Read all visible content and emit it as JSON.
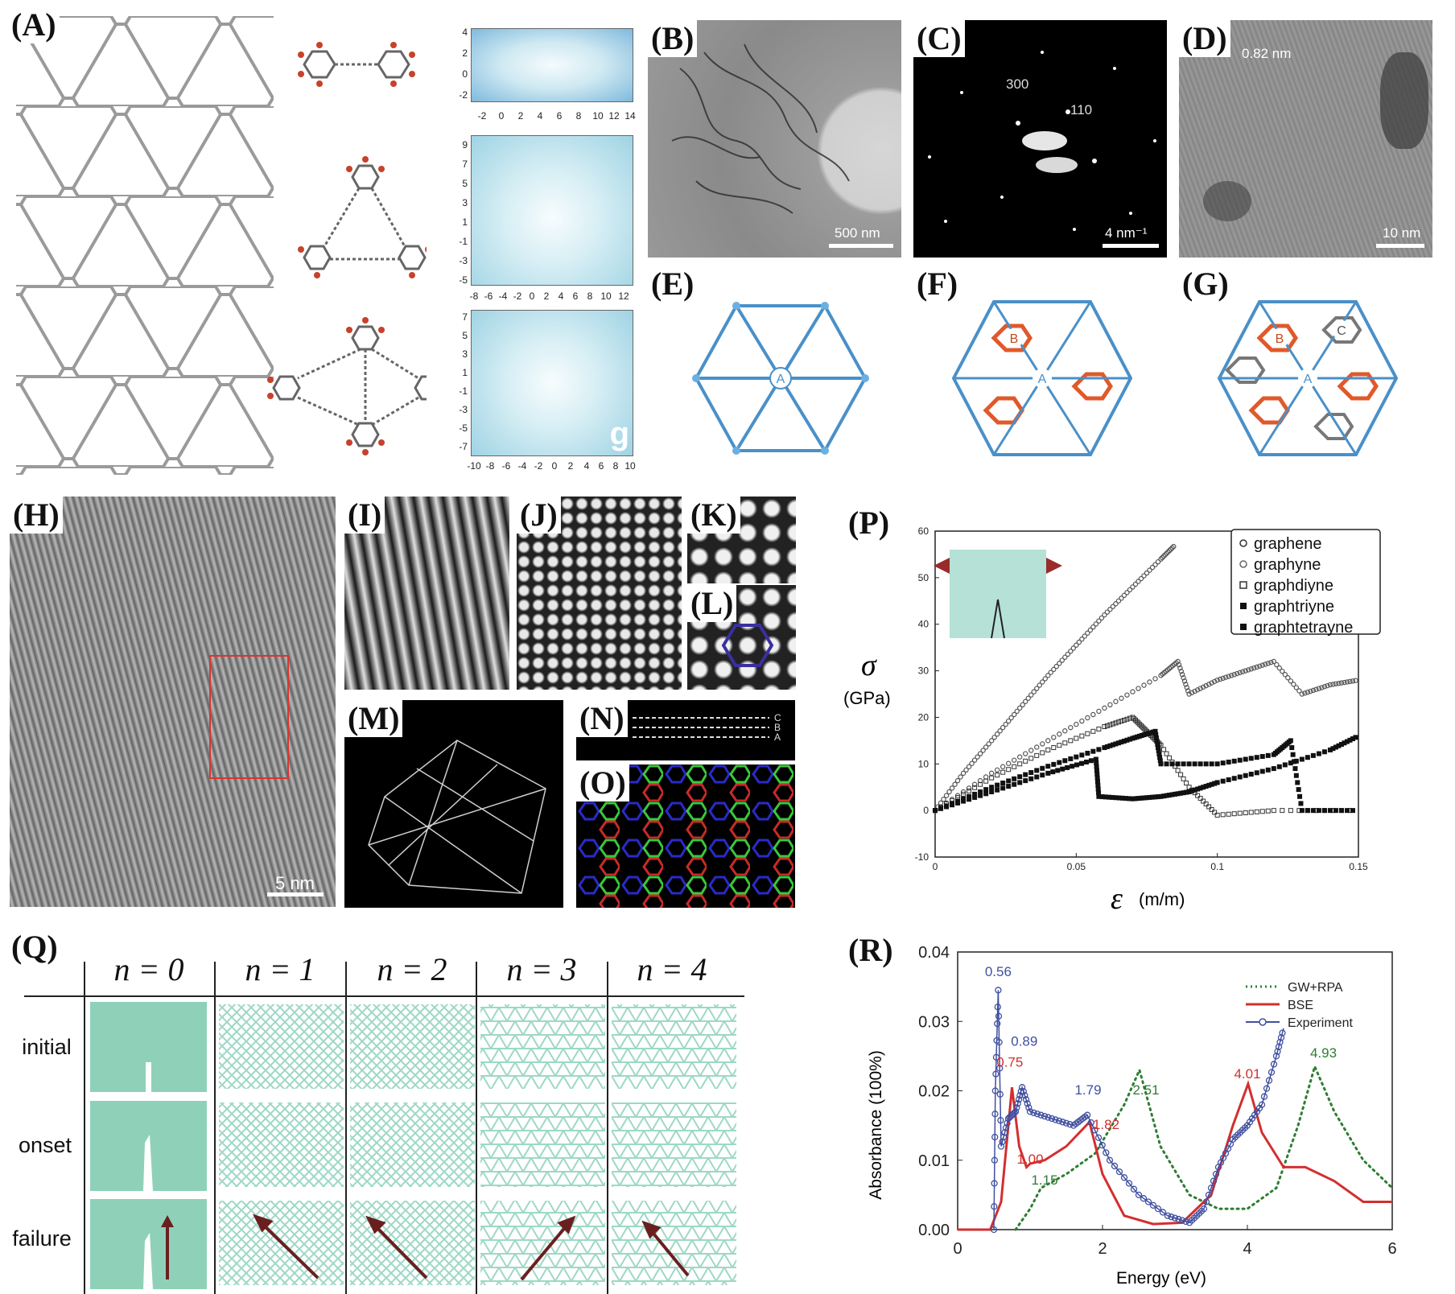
{
  "labels": {
    "A": "(A)",
    "B": "(B)",
    "C": "(C)",
    "D": "(D)",
    "E": "(E)",
    "F": "(F)",
    "G": "(G)",
    "H": "(H)",
    "I": "(I)",
    "J": "(J)",
    "K": "(K)",
    "L": "(L)",
    "M": "(M)",
    "N": "(N)",
    "O": "(O)",
    "P": "(P)",
    "Q": "(Q)",
    "R": "(R)"
  },
  "panel_a": {
    "map1_xticks": [
      "-2",
      "0",
      "2",
      "4",
      "6",
      "8",
      "10",
      "12",
      "14"
    ],
    "map1_yticks": [
      "4",
      "2",
      "0",
      "-2"
    ],
    "map2_xticks": [
      "-8",
      "-6",
      "-4",
      "-2",
      "0",
      "2",
      "4",
      "6",
      "8",
      "10",
      "12"
    ],
    "map2_yticks": [
      "9",
      "7",
      "5",
      "3",
      "1",
      "-1",
      "-3",
      "-5"
    ],
    "map3_xticks": [
      "-10",
      "-8",
      "-6",
      "-4",
      "-2",
      "0",
      "2",
      "4",
      "6",
      "8",
      "10"
    ],
    "map3_yticks": [
      "7",
      "5",
      "3",
      "1",
      "-1",
      "-3",
      "-5",
      "-7"
    ],
    "corner_letter": "g"
  },
  "panel_b": {
    "scale": "500 nm"
  },
  "panel_c": {
    "spot1": "300",
    "spot2": "110",
    "scale": "4 nm⁻¹"
  },
  "panel_d": {
    "spacing": "0.82 nm",
    "scale": "10 nm"
  },
  "panel_e": {
    "site": "A"
  },
  "panel_f": {
    "site_a": "A",
    "site_b": "B"
  },
  "panel_g": {
    "site_a": "A",
    "site_b": "B",
    "site_c": "C"
  },
  "panel_h": {
    "scale": "5 nm"
  },
  "panel_n": {
    "layers": [
      "C",
      "B",
      "A"
    ]
  },
  "panel_p": {
    "ylabel_symbol": "σ",
    "ylabel_unit": "(GPa)",
    "xlabel_symbol": "ε",
    "xlabel_unit": "(m/m)",
    "legend": [
      "graphene",
      "graphyne",
      "graphdiyne",
      "graphtriyne",
      "graphtetrayne"
    ]
  },
  "panel_q": {
    "headers": [
      "n = 0",
      "n = 1",
      "n = 2",
      "n = 3",
      "n = 4"
    ],
    "rows": [
      "initial",
      "onset",
      "failure"
    ]
  },
  "chart_data": [
    {
      "panel": "P",
      "type": "scatter",
      "title": "",
      "xlabel": "ε (m/m)",
      "ylabel": "σ (GPa)",
      "xlim": [
        0,
        0.15
      ],
      "ylim": [
        -10,
        60
      ],
      "xticks": [
        "0",
        "0.05",
        "0.1",
        "0.15"
      ],
      "yticks": [
        "60",
        "50",
        "40",
        "30",
        "20",
        "10",
        "0",
        "-10"
      ],
      "legend_position": "top-right",
      "series": [
        {
          "name": "graphene",
          "marker": "open-circle",
          "x": [
            0,
            0.01,
            0.02,
            0.03,
            0.04,
            0.05,
            0.06,
            0.07,
            0.08,
            0.085
          ],
          "y": [
            0,
            8,
            15,
            22,
            29,
            35.5,
            42,
            48,
            54,
            57
          ]
        },
        {
          "name": "graphyne",
          "marker": "open-circle",
          "x": [
            0,
            0.02,
            0.04,
            0.06,
            0.08,
            0.086,
            0.09,
            0.1,
            0.11,
            0.12,
            0.13,
            0.14,
            0.15
          ],
          "y": [
            0,
            8,
            15,
            22,
            29,
            32,
            25,
            28,
            30,
            32,
            25,
            27,
            28
          ]
        },
        {
          "name": "graphdiyne",
          "marker": "open-square",
          "x": [
            0,
            0.02,
            0.04,
            0.06,
            0.07,
            0.075,
            0.08,
            0.09,
            0.1,
            0.12,
            0.15
          ],
          "y": [
            0,
            7,
            13,
            18,
            20,
            17,
            14,
            5,
            -1,
            0,
            0
          ]
        },
        {
          "name": "graphtriyne",
          "marker": "filled-square",
          "x": [
            0,
            0.02,
            0.04,
            0.06,
            0.07,
            0.078,
            0.08,
            0.1,
            0.12,
            0.126,
            0.13,
            0.15
          ],
          "y": [
            0,
            5,
            9.5,
            13.5,
            15.5,
            17,
            10,
            10,
            12,
            15,
            0,
            0
          ]
        },
        {
          "name": "graphtetrayne",
          "marker": "filled-square",
          "x": [
            0,
            0.02,
            0.04,
            0.057,
            0.058,
            0.07,
            0.08,
            0.09,
            0.1,
            0.12,
            0.14,
            0.15
          ],
          "y": [
            0,
            4,
            8,
            11,
            3,
            2.5,
            3,
            4,
            6,
            9,
            13,
            16
          ]
        }
      ]
    },
    {
      "panel": "R",
      "type": "line",
      "title": "",
      "xlabel": "Energy (eV)",
      "ylabel": "Absorbance (100%)",
      "xlim": [
        0,
        6
      ],
      "ylim": [
        0,
        0.04
      ],
      "xticks": [
        "0",
        "2",
        "4",
        "6"
      ],
      "yticks": [
        "0.04",
        "0.03",
        "0.02",
        "0.01",
        "0.00"
      ],
      "legend_position": "top-right",
      "series": [
        {
          "name": "GW+RPA",
          "style": "dotted",
          "color": "#2e7d32",
          "x": [
            0.8,
            1.0,
            1.15,
            1.5,
            1.9,
            2.3,
            2.51,
            2.8,
            3.2,
            3.6,
            4.0,
            4.4,
            4.7,
            4.93,
            5.2,
            5.6,
            6.0
          ],
          "y": [
            0.0,
            0.003,
            0.006,
            0.008,
            0.011,
            0.018,
            0.023,
            0.012,
            0.005,
            0.003,
            0.003,
            0.006,
            0.015,
            0.0235,
            0.017,
            0.01,
            0.006
          ]
        },
        {
          "name": "BSE",
          "style": "solid",
          "color": "#d32f2f",
          "x": [
            0,
            0.45,
            0.6,
            0.75,
            0.85,
            0.95,
            1.0,
            1.2,
            1.5,
            1.82,
            2.0,
            2.3,
            2.7,
            3.1,
            3.5,
            3.8,
            4.01,
            4.2,
            4.5,
            4.8,
            5.2,
            5.6,
            6.0
          ],
          "y": [
            0,
            0.0,
            0.004,
            0.0205,
            0.012,
            0.009,
            0.0095,
            0.01,
            0.012,
            0.0155,
            0.008,
            0.002,
            0.0008,
            0.001,
            0.005,
            0.015,
            0.021,
            0.014,
            0.009,
            0.009,
            0.007,
            0.004,
            0.004
          ]
        },
        {
          "name": "Experiment",
          "style": "line-open-circle",
          "color": "#3f4fa0",
          "x": [
            0.5,
            0.52,
            0.56,
            0.6,
            0.7,
            0.8,
            0.89,
            1.0,
            1.3,
            1.6,
            1.79,
            2.1,
            2.5,
            2.9,
            3.2,
            3.4,
            3.6,
            3.8,
            4.0,
            4.2,
            4.4,
            4.5
          ],
          "y": [
            0.0,
            0.02,
            0.0345,
            0.012,
            0.016,
            0.017,
            0.0205,
            0.017,
            0.016,
            0.015,
            0.0165,
            0.01,
            0.005,
            0.002,
            0.001,
            0.003,
            0.009,
            0.013,
            0.015,
            0.018,
            0.025,
            0.029
          ]
        }
      ],
      "annotations": [
        {
          "text": "0.56",
          "color": "#3f4fa0"
        },
        {
          "text": "0.89",
          "color": "#3f4fa0"
        },
        {
          "text": "0.75",
          "color": "#d32f2f"
        },
        {
          "text": "1.00",
          "color": "#d32f2f"
        },
        {
          "text": "1.15",
          "color": "#2e7d32"
        },
        {
          "text": "1.79",
          "color": "#3f4fa0"
        },
        {
          "text": "1.82",
          "color": "#d32f2f"
        },
        {
          "text": "2.51",
          "color": "#2e7d32"
        },
        {
          "text": "4.01",
          "color": "#d32f2f"
        },
        {
          "text": "4.93",
          "color": "#2e7d32"
        }
      ]
    }
  ]
}
